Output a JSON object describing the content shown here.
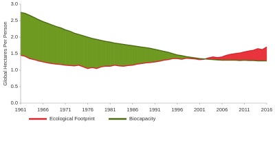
{
  "chart_data": {
    "type": "line",
    "y_label": "Global Hectares Per Person",
    "x": [
      1961,
      1962,
      1963,
      1964,
      1965,
      1966,
      1967,
      1968,
      1969,
      1970,
      1971,
      1972,
      1973,
      1974,
      1975,
      1976,
      1977,
      1978,
      1979,
      1980,
      1981,
      1982,
      1983,
      1984,
      1985,
      1986,
      1987,
      1988,
      1989,
      1990,
      1991,
      1992,
      1993,
      1994,
      1995,
      1996,
      1997,
      1998,
      1999,
      2000,
      2001,
      2002,
      2003,
      2004,
      2005,
      2006,
      2007,
      2008,
      2009,
      2010,
      2011,
      2012,
      2013,
      2014,
      2015,
      2016
    ],
    "series": [
      {
        "name": "Ecological Footprint",
        "color": "#d9262e",
        "fill": "#e8343c",
        "values": [
          1.45,
          1.42,
          1.35,
          1.32,
          1.28,
          1.25,
          1.22,
          1.2,
          1.18,
          1.17,
          1.15,
          1.14,
          1.13,
          1.15,
          1.1,
          1.05,
          1.08,
          1.05,
          1.1,
          1.12,
          1.12,
          1.15,
          1.13,
          1.12,
          1.14,
          1.15,
          1.18,
          1.2,
          1.22,
          1.23,
          1.25,
          1.27,
          1.3,
          1.32,
          1.35,
          1.35,
          1.33,
          1.36,
          1.35,
          1.34,
          1.32,
          1.33,
          1.37,
          1.4,
          1.38,
          1.4,
          1.45,
          1.48,
          1.5,
          1.52,
          1.55,
          1.58,
          1.6,
          1.65,
          1.62,
          1.7
        ]
      },
      {
        "name": "Biocapacity",
        "color": "#4d6b12",
        "fill": "#6e9a22",
        "values": [
          2.75,
          2.72,
          2.66,
          2.6,
          2.53,
          2.47,
          2.42,
          2.37,
          2.32,
          2.28,
          2.22,
          2.18,
          2.12,
          2.08,
          2.04,
          2.0,
          1.96,
          1.93,
          1.9,
          1.87,
          1.85,
          1.82,
          1.8,
          1.78,
          1.76,
          1.74,
          1.72,
          1.7,
          1.68,
          1.66,
          1.63,
          1.6,
          1.57,
          1.54,
          1.5,
          1.46,
          1.44,
          1.41,
          1.39,
          1.37,
          1.35,
          1.34,
          1.33,
          1.32,
          1.31,
          1.3,
          1.3,
          1.3,
          1.3,
          1.29,
          1.3,
          1.29,
          1.29,
          1.28,
          1.28,
          1.28
        ]
      }
    ],
    "xlim": [
      1961,
      2016
    ],
    "xticks": [
      1961,
      1966,
      1971,
      1976,
      1981,
      1986,
      1991,
      1996,
      2001,
      2006,
      2011,
      2016
    ],
    "ylim": [
      0,
      3
    ],
    "yticks": [
      {
        "value": 0,
        "label": "0.0"
      },
      0.5,
      {
        "value": 1,
        "label": "1.0"
      },
      1.5,
      {
        "value": 2,
        "label": "2.0"
      },
      2.5,
      {
        "value": 3,
        "label": "3.0"
      }
    ]
  }
}
